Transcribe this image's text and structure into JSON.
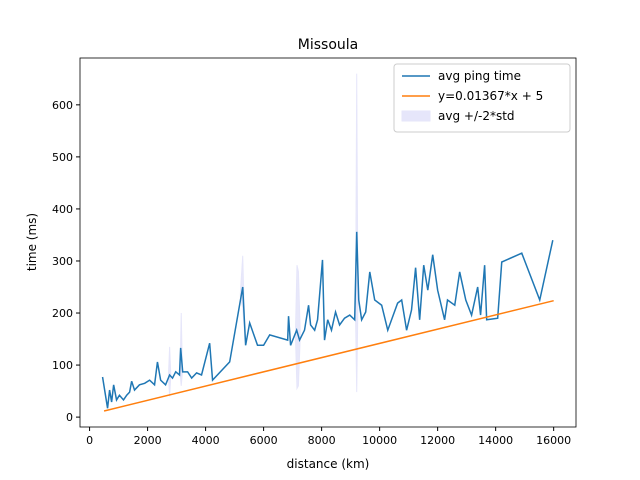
{
  "chart_data": {
    "type": "line",
    "title": "Missoula",
    "xlabel": "distance (km)",
    "ylabel": "time (ms)",
    "xlim": [
      -330,
      16770
    ],
    "ylim": [
      -19,
      690
    ],
    "xticks": [
      0,
      2000,
      4000,
      6000,
      8000,
      10000,
      12000,
      14000,
      16000
    ],
    "yticks": [
      0,
      100,
      200,
      300,
      400,
      500,
      600
    ],
    "legend": "upper right",
    "series": [
      {
        "name": "avg ping time",
        "color": "#1f77b4",
        "x": [
          448,
          620,
          690,
          760,
          830,
          930,
          1030,
          1170,
          1280,
          1380,
          1450,
          1550,
          1720,
          1900,
          2070,
          2240,
          2340,
          2450,
          2620,
          2760,
          2860,
          2970,
          3100,
          3140,
          3210,
          3380,
          3520,
          3690,
          3860,
          4140,
          4240,
          4830,
          5280,
          5380,
          5520,
          5790,
          6000,
          6210,
          6830,
          6860,
          6930,
          7140,
          7240,
          7410,
          7550,
          7620,
          7760,
          7860,
          8030,
          8100,
          8210,
          8340,
          8480,
          8620,
          8790,
          8970,
          9140,
          9210,
          9280,
          9380,
          9520,
          9660,
          9830,
          10070,
          10280,
          10620,
          10760,
          10930,
          11100,
          11240,
          11380,
          11520,
          11660,
          11830,
          12000,
          12240,
          12340,
          12590,
          12760,
          12970,
          13170,
          13380,
          13480,
          13620,
          13690,
          14070,
          14210,
          14900,
          15520,
          15970
        ],
        "values": [
          77,
          17,
          52,
          29,
          62,
          33,
          42,
          33,
          42,
          48,
          69,
          52,
          62,
          65,
          71,
          62,
          106,
          71,
          62,
          81,
          75,
          87,
          81,
          133,
          87,
          87,
          75,
          85,
          81,
          142,
          71,
          106,
          250,
          138,
          181,
          138,
          138,
          158,
          148,
          194,
          138,
          167,
          148,
          167,
          215,
          177,
          167,
          187,
          302,
          148,
          187,
          167,
          202,
          177,
          190,
          196,
          187,
          356,
          225,
          187,
          202,
          279,
          225,
          215,
          167,
          219,
          225,
          167,
          206,
          287,
          187,
          292,
          244,
          312,
          244,
          187,
          225,
          215,
          279,
          225,
          196,
          250,
          196,
          292,
          187,
          190,
          298,
          315,
          225,
          340
        ]
      },
      {
        "name": "y=0.01367*x + 5",
        "color": "#ff7f0e",
        "x": [
          500,
          16000
        ],
        "values": [
          11.8,
          223.7
        ]
      },
      {
        "name": "avg +/-2*std",
        "color": "#e6e6fa",
        "kind": "band",
        "x": [
          2720,
          2760,
          2800,
          null,
          3120,
          3160,
          3200,
          null,
          5200,
          5280,
          5360,
          null,
          7100,
          7150,
          7200,
          7260,
          null,
          9170,
          9210,
          9250
        ],
        "lower": [
          78,
          40,
          78,
          null,
          85,
          60,
          85,
          null,
          230,
          210,
          150,
          null,
          150,
          55,
          60,
          150,
          null,
          190,
          48,
          210
        ],
        "upper": [
          82,
          135,
          82,
          null,
          90,
          200,
          90,
          null,
          240,
          310,
          150,
          null,
          170,
          292,
          280,
          170,
          null,
          200,
          660,
          240
        ]
      }
    ]
  }
}
